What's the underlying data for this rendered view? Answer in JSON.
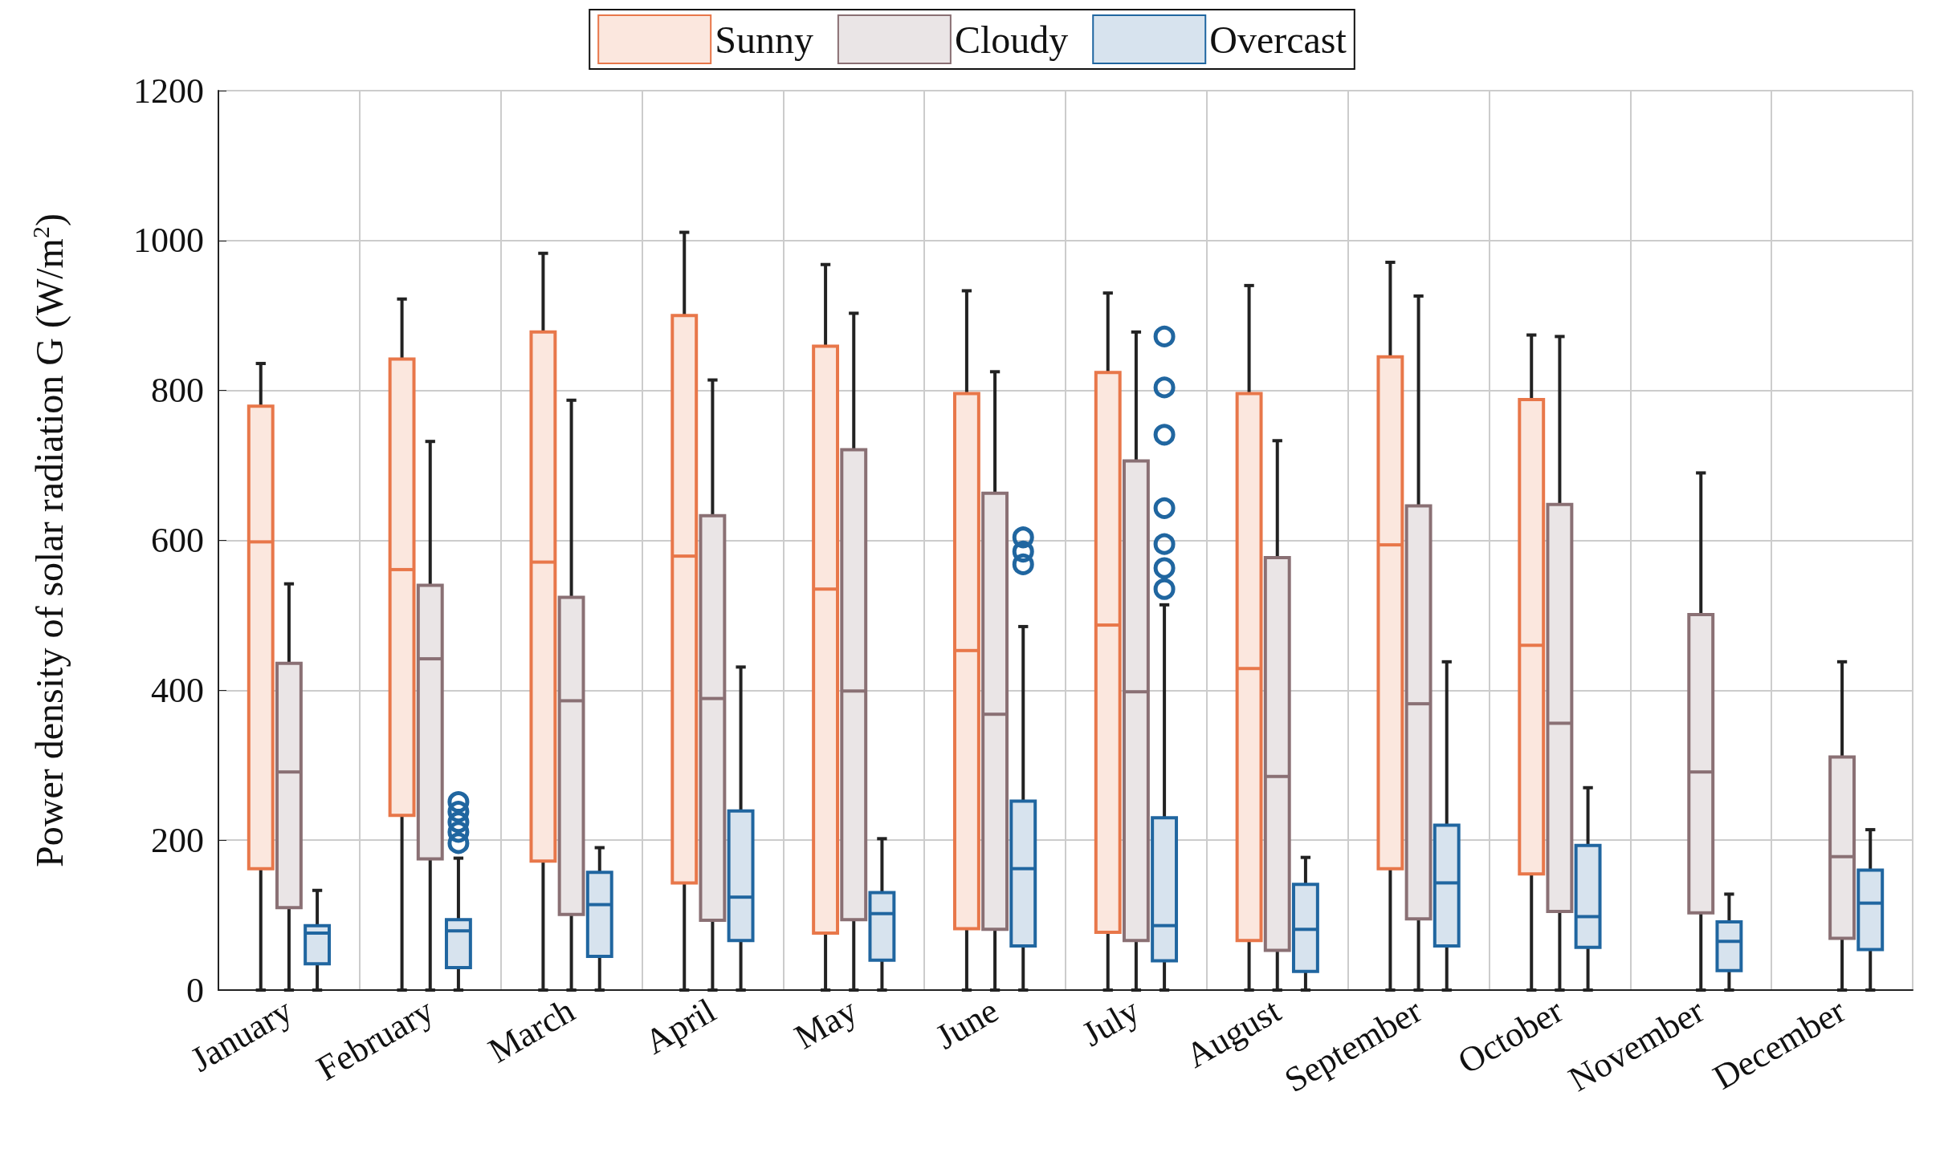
{
  "chart_data": {
    "type": "box",
    "ylabel": "Power density of solar radiation G (W/m$^{2}$)",
    "categories": [
      "January",
      "February",
      "March",
      "April",
      "May",
      "June",
      "July",
      "August",
      "September",
      "October",
      "November",
      "December"
    ],
    "ylim": [
      0,
      1200
    ],
    "yticks": [
      0,
      200,
      400,
      600,
      800,
      1000,
      1200
    ],
    "grid": true,
    "legend": "top",
    "series": [
      {
        "name": "Sunny",
        "color": "#e8774a",
        "boxes": [
          {
            "low": 0,
            "q1": 162,
            "median": 598,
            "q3": 779,
            "high": 836
          },
          {
            "low": 0,
            "q1": 233,
            "median": 561,
            "q3": 842,
            "high": 922
          },
          {
            "low": 0,
            "q1": 172,
            "median": 571,
            "q3": 878,
            "high": 983
          },
          {
            "low": 0,
            "q1": 143,
            "median": 579,
            "q3": 900,
            "high": 1011
          },
          {
            "low": 0,
            "q1": 76,
            "median": 535,
            "q3": 859,
            "high": 968
          },
          {
            "low": 0,
            "q1": 82,
            "median": 453,
            "q3": 796,
            "high": 933
          },
          {
            "low": 0,
            "q1": 77,
            "median": 487,
            "q3": 824,
            "high": 930
          },
          {
            "low": 0,
            "q1": 66,
            "median": 429,
            "q3": 796,
            "high": 940
          },
          {
            "low": 0,
            "q1": 162,
            "median": 594,
            "q3": 845,
            "high": 971
          },
          {
            "low": 0,
            "q1": 155,
            "median": 460,
            "q3": 788,
            "high": 874
          },
          null,
          null
        ]
      },
      {
        "name": "Cloudy",
        "color": "#8a7074",
        "boxes": [
          {
            "low": 0,
            "q1": 110,
            "median": 291,
            "q3": 436,
            "high": 542
          },
          {
            "low": 0,
            "q1": 175,
            "median": 442,
            "q3": 540,
            "high": 732
          },
          {
            "low": 0,
            "q1": 101,
            "median": 386,
            "q3": 524,
            "high": 787
          },
          {
            "low": 0,
            "q1": 93,
            "median": 389,
            "q3": 633,
            "high": 814
          },
          {
            "low": 0,
            "q1": 94,
            "median": 399,
            "q3": 721,
            "high": 903
          },
          {
            "low": 0,
            "q1": 81,
            "median": 368,
            "q3": 663,
            "high": 825
          },
          {
            "low": 0,
            "q1": 66,
            "median": 398,
            "q3": 706,
            "high": 878
          },
          {
            "low": 0,
            "q1": 53,
            "median": 285,
            "q3": 577,
            "high": 733
          },
          {
            "low": 0,
            "q1": 95,
            "median": 382,
            "q3": 646,
            "high": 926
          },
          {
            "low": 0,
            "q1": 105,
            "median": 356,
            "q3": 648,
            "high": 872
          },
          {
            "low": 0,
            "q1": 103,
            "median": 291,
            "q3": 501,
            "high": 690
          },
          {
            "low": 0,
            "q1": 69,
            "median": 178,
            "q3": 311,
            "high": 438
          }
        ]
      },
      {
        "name": "Overcast",
        "color": "#2066a0",
        "boxes": [
          {
            "low": 0,
            "q1": 35,
            "median": 76,
            "q3": 86,
            "high": 133
          },
          {
            "low": 0,
            "q1": 30,
            "median": 79,
            "q3": 94,
            "high": 176,
            "outliers": [
              196,
              211,
              224,
              238,
              251
            ]
          },
          {
            "low": 0,
            "q1": 45,
            "median": 114,
            "q3": 157,
            "high": 190
          },
          {
            "low": 0,
            "q1": 66,
            "median": 124,
            "q3": 239,
            "high": 431
          },
          {
            "low": 0,
            "q1": 40,
            "median": 102,
            "q3": 130,
            "high": 202
          },
          {
            "low": 0,
            "q1": 59,
            "median": 162,
            "q3": 252,
            "high": 485,
            "outliers": [
              568,
              585,
              604
            ]
          },
          {
            "low": 0,
            "q1": 39,
            "median": 86,
            "q3": 230,
            "high": 514,
            "outliers": [
              535,
              563,
              595,
              643,
              741,
              804,
              872
            ]
          },
          {
            "low": 0,
            "q1": 25,
            "median": 81,
            "q3": 141,
            "high": 177
          },
          {
            "low": 0,
            "q1": 59,
            "median": 143,
            "q3": 220,
            "high": 438
          },
          {
            "low": 0,
            "q1": 57,
            "median": 98,
            "q3": 193,
            "high": 270
          },
          {
            "low": 0,
            "q1": 26,
            "median": 65,
            "q3": 91,
            "high": 128
          },
          {
            "low": 0,
            "q1": 54,
            "median": 116,
            "q3": 160,
            "high": 214
          }
        ]
      }
    ]
  }
}
